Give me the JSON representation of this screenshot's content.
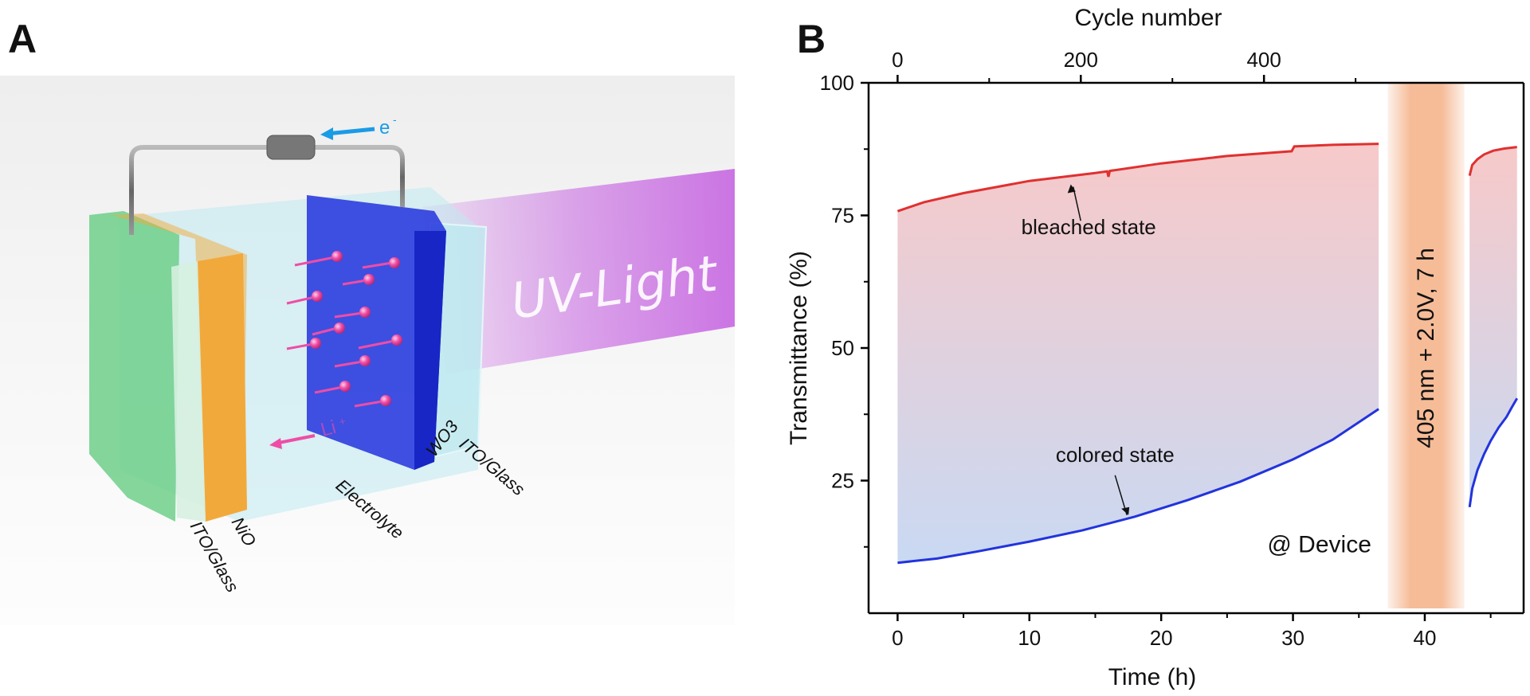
{
  "figure": {
    "panel_a_letter": "A",
    "panel_b_letter": "B"
  },
  "illustration": {
    "light_label": "UV-Light",
    "electron_label": "e",
    "electron_sup": "-",
    "lithium_label": "Li",
    "lithium_sup": "+",
    "layers": [
      "ITO/Glass",
      "NiO",
      "Electrolyte",
      "WO3",
      "ITO/Glass"
    ],
    "colors": {
      "ito_glass": "#6fcf8a",
      "nio": "#f2a93b",
      "electrolyte": "#bfeaf0",
      "wo3": "#2233dd",
      "uv_beam": "#c45ee0",
      "ion": "#ee4da6",
      "electron_arrow": "#1a9be6"
    }
  },
  "chart_data": {
    "type": "line",
    "xlabel": "Time (h)",
    "ylabel": "Transmittance (%)",
    "x2label": "Cycle number",
    "xlim": [
      -2.2,
      47.5
    ],
    "ylim": [
      0,
      100
    ],
    "xticks": [
      0,
      10,
      20,
      30,
      40
    ],
    "yticks": [
      25,
      50,
      75,
      100
    ],
    "x2ticks": [
      {
        "label": "0",
        "time": 0
      },
      {
        "label": "200",
        "time": 13.9
      },
      {
        "label": "400",
        "time": 27.8
      }
    ],
    "series": [
      {
        "name": "bleached state",
        "color": "#e03030",
        "segments": [
          [
            [
              0,
              75.8
            ],
            [
              2,
              77.5
            ],
            [
              5,
              79.2
            ],
            [
              10,
              81.5
            ],
            [
              15,
              83.0
            ],
            [
              15.9,
              83.3
            ],
            [
              16.0,
              82.3
            ],
            [
              16.1,
              83.4
            ],
            [
              20,
              84.8
            ],
            [
              25,
              86.2
            ],
            [
              29.9,
              87.1
            ],
            [
              30.1,
              88.0
            ],
            [
              33,
              88.3
            ],
            [
              36.5,
              88.5
            ]
          ],
          [
            [
              43.4,
              82.5
            ],
            [
              43.6,
              84.5
            ],
            [
              44.0,
              85.6
            ],
            [
              44.5,
              86.5
            ],
            [
              45.2,
              87.2
            ],
            [
              46,
              87.6
            ],
            [
              47,
              87.9
            ]
          ]
        ]
      },
      {
        "name": "colored state",
        "color": "#2233dd",
        "segments": [
          [
            [
              0,
              9.5
            ],
            [
              3,
              10.3
            ],
            [
              6,
              11.6
            ],
            [
              10,
              13.5
            ],
            [
              14,
              15.6
            ],
            [
              18,
              18.2
            ],
            [
              22,
              21.3
            ],
            [
              26,
              24.8
            ],
            [
              30,
              29.0
            ],
            [
              33,
              32.7
            ],
            [
              36.5,
              38.5
            ]
          ],
          [
            [
              43.4,
              20.0
            ],
            [
              43.6,
              23.5
            ],
            [
              44.0,
              27.0
            ],
            [
              44.5,
              30.0
            ],
            [
              45.0,
              32.5
            ],
            [
              45.6,
              35.0
            ],
            [
              46.2,
              37.0
            ],
            [
              46.6,
              38.8
            ],
            [
              47,
              40.5
            ]
          ]
        ]
      }
    ],
    "annotations": [
      {
        "text": "bleached state",
        "x": 14.5,
        "y": 71.5
      },
      {
        "text": "colored state",
        "x": 16.5,
        "y": 28.5
      },
      {
        "text": "@ Device",
        "x": 32,
        "y": 11.5
      },
      {
        "text": "405 nm + 2.0V, 7 h",
        "x": 40.0,
        "y": 50
      }
    ],
    "shaded_band": {
      "x_from": 37.2,
      "x_to": 43.0,
      "color": "#f5b892"
    }
  }
}
